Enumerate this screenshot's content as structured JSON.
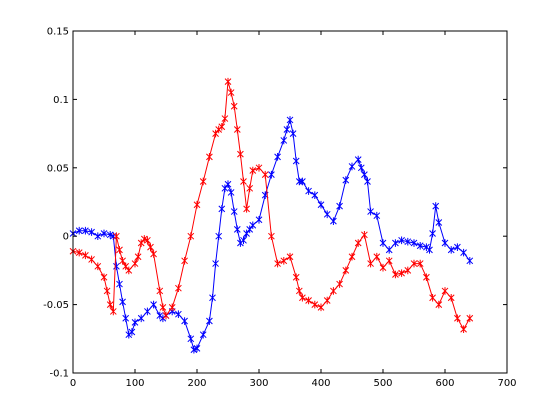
{
  "chart_data": {
    "type": "line",
    "title": "",
    "xlabel": "",
    "ylabel": "",
    "xlim": [
      0,
      700
    ],
    "ylim": [
      -0.1,
      0.15
    ],
    "xticks": [
      0,
      100,
      200,
      300,
      400,
      500,
      600,
      700
    ],
    "yticks": [
      -0.1,
      -0.05,
      0,
      0.05,
      0.1,
      0.15
    ],
    "xtick_labels": [
      "0",
      "100",
      "200",
      "300",
      "400",
      "500",
      "600",
      "700"
    ],
    "ytick_labels": [
      "-0.1",
      "-0.05",
      "0",
      "0.05",
      "0.1",
      "0.15"
    ],
    "grid": false,
    "marker": "asterisk",
    "series": [
      {
        "color": "#0000ff",
        "x": [
          0,
          10,
          20,
          30,
          40,
          50,
          60,
          65,
          70,
          75,
          80,
          85,
          90,
          95,
          100,
          110,
          120,
          130,
          140,
          145,
          150,
          160,
          170,
          180,
          190,
          195,
          200,
          210,
          220,
          225,
          230,
          235,
          240,
          245,
          250,
          255,
          260,
          265,
          270,
          275,
          280,
          285,
          290,
          300,
          310,
          320,
          330,
          340,
          345,
          350,
          355,
          360,
          365,
          370,
          380,
          390,
          400,
          410,
          420,
          430,
          440,
          450,
          460,
          465,
          470,
          475,
          480,
          490,
          500,
          510,
          520,
          530,
          540,
          550,
          560,
          570,
          575,
          580,
          585,
          590,
          600,
          610,
          620,
          630,
          640
        ],
        "y": [
          0.002,
          0.004,
          0.004,
          0.003,
          0.0,
          0.002,
          0.001,
          0.0,
          -0.022,
          -0.035,
          -0.048,
          -0.06,
          -0.072,
          -0.07,
          -0.063,
          -0.06,
          -0.055,
          -0.05,
          -0.058,
          -0.06,
          -0.058,
          -0.055,
          -0.057,
          -0.062,
          -0.075,
          -0.083,
          -0.082,
          -0.072,
          -0.062,
          -0.045,
          -0.02,
          0.0,
          0.02,
          0.035,
          0.038,
          0.032,
          0.018,
          0.005,
          -0.005,
          -0.003,
          0.002,
          0.005,
          0.008,
          0.012,
          0.03,
          0.045,
          0.058,
          0.07,
          0.078,
          0.085,
          0.075,
          0.055,
          0.04,
          0.04,
          0.033,
          0.03,
          0.023,
          0.016,
          0.011,
          0.022,
          0.041,
          0.051,
          0.056,
          0.05,
          0.045,
          0.04,
          0.018,
          0.015,
          -0.005,
          -0.01,
          -0.005,
          -0.003,
          -0.004,
          -0.005,
          -0.007,
          -0.008,
          -0.01,
          0.002,
          0.022,
          0.01,
          -0.005,
          -0.01,
          -0.008,
          -0.012,
          -0.018
        ]
      },
      {
        "color": "#ff0000",
        "x": [
          0,
          10,
          20,
          30,
          40,
          50,
          55,
          60,
          65,
          70,
          75,
          80,
          85,
          90,
          100,
          105,
          110,
          115,
          120,
          125,
          130,
          140,
          145,
          150,
          160,
          170,
          180,
          190,
          200,
          210,
          220,
          230,
          235,
          240,
          245,
          250,
          255,
          260,
          265,
          270,
          275,
          280,
          285,
          290,
          300,
          310,
          320,
          330,
          340,
          350,
          360,
          365,
          370,
          380,
          390,
          400,
          410,
          420,
          430,
          440,
          450,
          460,
          470,
          480,
          490,
          500,
          510,
          520,
          530,
          540,
          550,
          560,
          570,
          580,
          590,
          600,
          610,
          620,
          630,
          640
        ],
        "y": [
          -0.011,
          -0.012,
          -0.014,
          -0.017,
          -0.022,
          -0.03,
          -0.04,
          -0.05,
          -0.055,
          -0.0,
          -0.01,
          -0.018,
          -0.022,
          -0.025,
          -0.02,
          -0.015,
          -0.005,
          -0.002,
          -0.003,
          -0.008,
          -0.013,
          -0.04,
          -0.052,
          -0.058,
          -0.052,
          -0.038,
          -0.018,
          0.0,
          0.023,
          0.04,
          0.058,
          0.075,
          0.078,
          0.08,
          0.086,
          0.113,
          0.105,
          0.095,
          0.078,
          0.06,
          0.04,
          0.02,
          0.035,
          0.048,
          0.05,
          0.045,
          0.0,
          -0.02,
          -0.018,
          -0.015,
          -0.03,
          -0.04,
          -0.045,
          -0.047,
          -0.05,
          -0.052,
          -0.047,
          -0.04,
          -0.035,
          -0.025,
          -0.015,
          -0.005,
          0.001,
          -0.02,
          -0.015,
          -0.023,
          -0.018,
          -0.028,
          -0.027,
          -0.025,
          -0.02,
          -0.02,
          -0.03,
          -0.045,
          -0.05,
          -0.04,
          -0.045,
          -0.06,
          -0.068,
          -0.06
        ]
      }
    ]
  }
}
